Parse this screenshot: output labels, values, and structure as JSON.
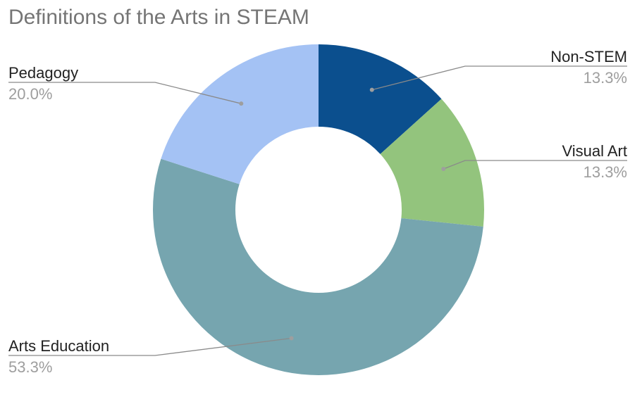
{
  "chart_data": {
    "type": "pie",
    "donut": true,
    "title": "Definitions of the Arts in STEAM",
    "slices": [
      {
        "label": "Non-STEM",
        "value": 13.3,
        "display": "13.3%",
        "color": "#0b4f8e"
      },
      {
        "label": "Visual Art",
        "value": 13.3,
        "display": "13.3%",
        "color": "#93c47d"
      },
      {
        "label": "Arts Education",
        "value": 53.3,
        "display": "53.3%",
        "color": "#76a5af"
      },
      {
        "label": "Pedagogy",
        "value": 20.0,
        "display": "20.0%",
        "color": "#a4c2f4"
      }
    ],
    "legend": "none"
  }
}
